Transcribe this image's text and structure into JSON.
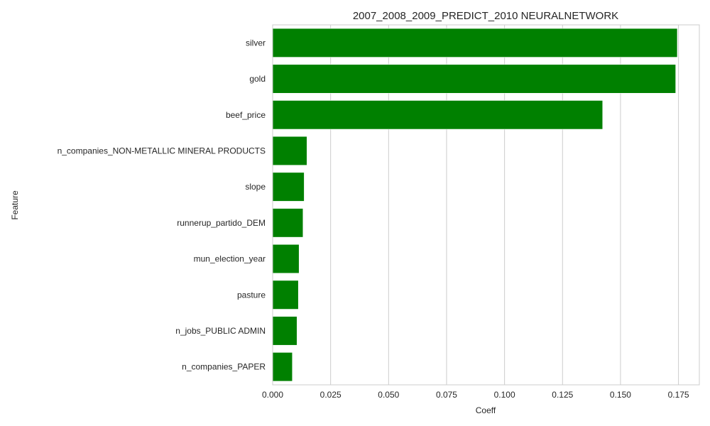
{
  "chart_data": {
    "type": "bar",
    "orientation": "horizontal",
    "title": "2007_2008_2009_PREDICT_2010 NEURALNETWORK",
    "xlabel": "Coeff",
    "ylabel": "Feature",
    "categories": [
      "silver",
      "gold",
      "beef_price",
      "n_companies_NON-METALLIC MINERAL PRODUCTS",
      "slope",
      "runnerup_partido_DEM",
      "mun_election_year",
      "pasture",
      "n_jobs_PUBLIC ADMIN",
      "n_companies_PAPER"
    ],
    "values": [
      0.1745,
      0.1738,
      0.1423,
      0.0148,
      0.0136,
      0.0131,
      0.0114,
      0.0111,
      0.0105,
      0.0085
    ],
    "xlim": [
      0,
      0.184
    ],
    "xticks": [
      0.0,
      0.025,
      0.05,
      0.075,
      0.1,
      0.125,
      0.15,
      0.175
    ],
    "xtick_labels": [
      "0.000",
      "0.025",
      "0.050",
      "0.075",
      "0.100",
      "0.125",
      "0.150",
      "0.175"
    ],
    "grid": "vertical",
    "bar_color": "#008000",
    "grid_color": "#cccccc",
    "axis_color": "#cccccc"
  }
}
